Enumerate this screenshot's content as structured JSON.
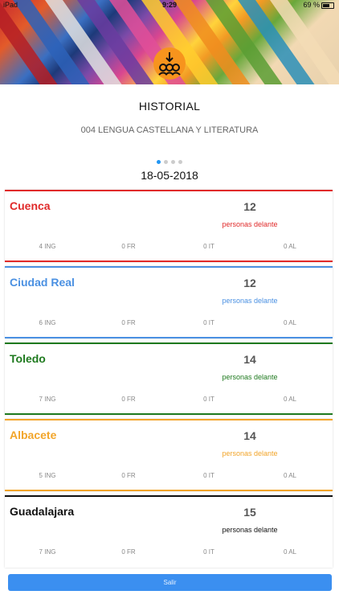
{
  "status": {
    "carrier": "iPad",
    "time": "9:29",
    "battery": "69 %"
  },
  "header": {
    "title": "HISTORIAL",
    "subject": "004 LENGUA CASTELLANA Y LITERATURA",
    "date": "18-05-2018",
    "page_dots": {
      "count": 4,
      "active": 1
    }
  },
  "cards": [
    {
      "city": "Cuenca",
      "color": "#e02a2a",
      "count": "12",
      "ahead": "personas delante",
      "ing": "4 ING",
      "fr": "0 FR",
      "it": "0 IT",
      "al": "0 AL"
    },
    {
      "city": "Ciudad Real",
      "color": "#4a90e2",
      "count": "12",
      "ahead": "personas delante",
      "ing": "6 ING",
      "fr": "0 FR",
      "it": "0 IT",
      "al": "0 AL"
    },
    {
      "city": "Toledo",
      "color": "#1f7a1f",
      "count": "14",
      "ahead": "personas delante",
      "ing": "7 ING",
      "fr": "0 FR",
      "it": "0 IT",
      "al": "0 AL"
    },
    {
      "city": "Albacete",
      "color": "#f2a52a",
      "count": "14",
      "ahead": "personas delante",
      "ing": "5 ING",
      "fr": "0 FR",
      "it": "0 IT",
      "al": "0 AL"
    },
    {
      "city": "Guadalajara",
      "color": "#111111",
      "count": "15",
      "ahead": "personas delante",
      "ing": "7 ING",
      "fr": "0 FR",
      "it": "0 IT",
      "al": "0 AL"
    }
  ],
  "exit_label": "Salir"
}
